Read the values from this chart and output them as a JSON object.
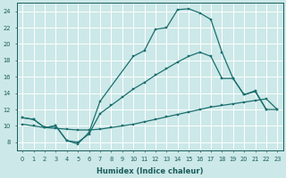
{
  "xlabel": "Humidex (Indice chaleur)",
  "bg_color": "#cce8e8",
  "grid_color": "#b8d8d8",
  "line_color": "#1a6e6e",
  "xlim": [
    -0.5,
    23.5
  ],
  "ylim": [
    7,
    25
  ],
  "yticks": [
    8,
    10,
    12,
    14,
    16,
    18,
    20,
    22,
    24
  ],
  "xticks": [
    0,
    1,
    2,
    3,
    4,
    5,
    6,
    7,
    8,
    9,
    10,
    11,
    12,
    13,
    14,
    15,
    16,
    17,
    18,
    19,
    20,
    21,
    22,
    23
  ],
  "curve1_x": [
    0,
    1,
    2,
    3,
    4,
    5,
    6,
    7,
    10,
    11,
    12,
    13,
    14,
    15,
    16,
    17,
    18,
    19,
    20,
    21,
    22,
    23
  ],
  "curve1_y": [
    11.0,
    10.8,
    9.8,
    10.0,
    8.2,
    7.8,
    9.2,
    13.0,
    18.5,
    19.2,
    21.8,
    22.0,
    24.2,
    24.3,
    23.8,
    23.0,
    19.0,
    15.8,
    13.8,
    14.3,
    12.0,
    12.0
  ],
  "curve2_x": [
    0,
    1,
    2,
    3,
    4,
    5,
    6,
    7,
    8,
    9,
    10,
    11,
    12,
    13,
    14,
    15,
    16,
    17,
    18,
    19,
    20,
    21,
    22
  ],
  "curve2_y": [
    11.0,
    10.8,
    9.8,
    10.0,
    8.2,
    8.0,
    9.0,
    11.5,
    12.5,
    13.5,
    14.5,
    15.3,
    16.2,
    17.0,
    17.8,
    18.5,
    19.0,
    18.5,
    15.8,
    15.8,
    13.8,
    14.2,
    12.0
  ],
  "curve3_x": [
    0,
    1,
    2,
    3,
    4,
    5,
    6,
    7,
    8,
    9,
    10,
    11,
    12,
    13,
    14,
    15,
    16,
    17,
    18,
    19,
    20,
    21,
    22,
    23
  ],
  "curve3_y": [
    10.2,
    10.0,
    9.8,
    9.7,
    9.6,
    9.5,
    9.5,
    9.6,
    9.8,
    10.0,
    10.2,
    10.5,
    10.8,
    11.1,
    11.4,
    11.7,
    12.0,
    12.3,
    12.5,
    12.7,
    12.9,
    13.1,
    13.3,
    12.0
  ]
}
